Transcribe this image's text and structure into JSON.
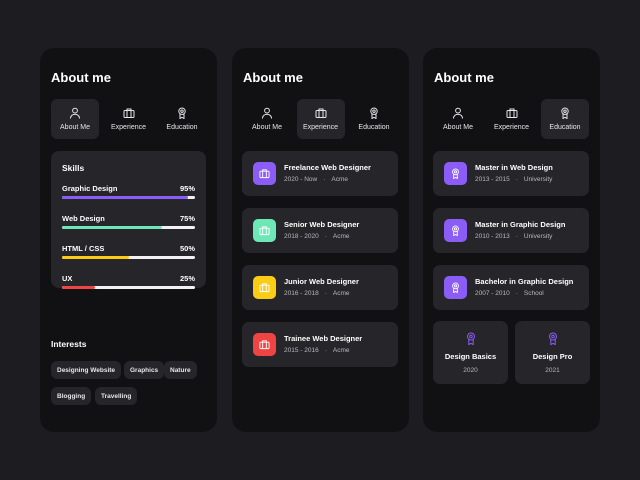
{
  "colors": {
    "purple": "#8b5cf6",
    "green": "#6ee7b7",
    "yellow": "#facc15",
    "red": "#ef4444"
  },
  "title": "About me",
  "tabs": [
    {
      "label": "About Me",
      "icon": "user-icon"
    },
    {
      "label": "Experience",
      "icon": "briefcase-icon"
    },
    {
      "label": "Education",
      "icon": "award-icon"
    }
  ],
  "skills": {
    "title": "Skills",
    "items": [
      {
        "name": "Graphic Design",
        "percent_label": "95%",
        "level": 0.95
      },
      {
        "name": "Web Design",
        "percent_label": "75%",
        "level": 0.75
      },
      {
        "name": "HTML / CSS",
        "percent_label": "50%",
        "level": 0.5
      },
      {
        "name": "UX",
        "percent_label": "25%",
        "level": 0.25
      }
    ]
  },
  "interests": {
    "title": "Interests",
    "items": [
      "Designing Website",
      "Graphics",
      "Nature",
      "Blogging",
      "Travelling"
    ]
  },
  "experience": [
    {
      "title": "Freelance Web Designer",
      "period": "2020 - Now",
      "org": "Acme"
    },
    {
      "title": "Senior Web Designer",
      "period": "2018 - 2020",
      "org": "Acme"
    },
    {
      "title": "Junior Web Designer",
      "period": "2016 - 2018",
      "org": "Acme"
    },
    {
      "title": "Trainee Web Designer",
      "period": "2015 - 2016",
      "org": "Acme"
    }
  ],
  "education": [
    {
      "title": "Master in Web Design",
      "period": "2013 - 2015",
      "org": "University"
    },
    {
      "title": "Master in Graphic Design",
      "period": "2010 - 2013",
      "org": "University"
    },
    {
      "title": "Bachelor in Graphic Design",
      "period": "2007 - 2010",
      "org": "School"
    }
  ],
  "awards": [
    {
      "title": "Design Basics",
      "year": "2020"
    },
    {
      "title": "Design Pro",
      "year": "2021"
    }
  ],
  "separator": "·"
}
